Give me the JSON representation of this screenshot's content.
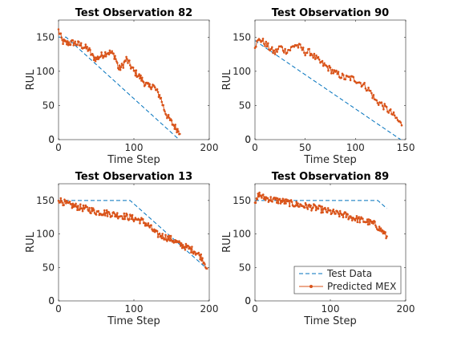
{
  "colors": {
    "test": "#0072BD",
    "pred": "#D95319",
    "axis": "#262626"
  },
  "chart_data": [
    {
      "type": "line",
      "title": "Test Observation 82",
      "xlabel": "Time Step",
      "ylabel": "RUL",
      "xlim": [
        0,
        200
      ],
      "ylim": [
        0,
        175
      ],
      "xticks": [
        0,
        100,
        200
      ],
      "yticks": [
        0,
        50,
        100,
        150
      ],
      "length": 161,
      "test_start": 160,
      "plateau": 150,
      "pred": [
        [
          0,
          160
        ],
        [
          5,
          144
        ],
        [
          10,
          141
        ],
        [
          20,
          142
        ],
        [
          30,
          138
        ],
        [
          40,
          132
        ],
        [
          45,
          122
        ],
        [
          50,
          118
        ],
        [
          55,
          122
        ],
        [
          60,
          125
        ],
        [
          65,
          128
        ],
        [
          70,
          127
        ],
        [
          75,
          122
        ],
        [
          80,
          103
        ],
        [
          85,
          108
        ],
        [
          90,
          118
        ],
        [
          95,
          109
        ],
        [
          100,
          100
        ],
        [
          105,
          95
        ],
        [
          110,
          89
        ],
        [
          115,
          82
        ],
        [
          120,
          77
        ],
        [
          125,
          80
        ],
        [
          130,
          71
        ],
        [
          135,
          63
        ],
        [
          140,
          45
        ],
        [
          145,
          33
        ],
        [
          150,
          25
        ],
        [
          155,
          18
        ],
        [
          160,
          12
        ]
      ],
      "series": [
        {
          "name": "Test Data"
        },
        {
          "name": "Predicted MEX"
        }
      ]
    },
    {
      "type": "line",
      "title": "Test Observation 90",
      "xlabel": "Time Step",
      "ylabel": "RUL",
      "xlim": [
        0,
        150
      ],
      "ylim": [
        0,
        175
      ],
      "xticks": [
        0,
        50,
        100,
        150
      ],
      "yticks": [
        0,
        50,
        100,
        150
      ],
      "length": 146,
      "test_start": 145,
      "plateau": 150,
      "pred": [
        [
          0,
          138
        ],
        [
          5,
          147
        ],
        [
          10,
          141
        ],
        [
          15,
          133
        ],
        [
          20,
          127
        ],
        [
          25,
          136
        ],
        [
          30,
          130
        ],
        [
          35,
          132
        ],
        [
          40,
          139
        ],
        [
          45,
          135
        ],
        [
          50,
          128
        ],
        [
          55,
          128
        ],
        [
          60,
          120
        ],
        [
          65,
          113
        ],
        [
          70,
          108
        ],
        [
          75,
          103
        ],
        [
          80,
          97
        ],
        [
          85,
          94
        ],
        [
          90,
          90
        ],
        [
          95,
          90
        ],
        [
          100,
          88
        ],
        [
          105,
          83
        ],
        [
          110,
          78
        ],
        [
          115,
          70
        ],
        [
          120,
          57
        ],
        [
          125,
          53
        ],
        [
          130,
          46
        ],
        [
          135,
          40
        ],
        [
          140,
          32
        ],
        [
          145,
          23
        ]
      ],
      "series": [
        {
          "name": "Test Data"
        },
        {
          "name": "Predicted MEX"
        }
      ]
    },
    {
      "type": "line",
      "title": "Test Observation 13",
      "xlabel": "Time Step",
      "ylabel": "RUL",
      "xlim": [
        0,
        200
      ],
      "ylim": [
        0,
        175
      ],
      "xticks": [
        0,
        100,
        200
      ],
      "yticks": [
        0,
        50,
        100,
        150
      ],
      "length": 197,
      "test_start": 245,
      "plateau": 150,
      "pred": [
        [
          0,
          152
        ],
        [
          10,
          145
        ],
        [
          20,
          142
        ],
        [
          30,
          139
        ],
        [
          40,
          137
        ],
        [
          50,
          133
        ],
        [
          60,
          132
        ],
        [
          70,
          130
        ],
        [
          80,
          128
        ],
        [
          90,
          126
        ],
        [
          100,
          123
        ],
        [
          110,
          120
        ],
        [
          120,
          112
        ],
        [
          130,
          100
        ],
        [
          140,
          96
        ],
        [
          150,
          92
        ],
        [
          160,
          85
        ],
        [
          170,
          80
        ],
        [
          180,
          75
        ],
        [
          190,
          65
        ],
        [
          197,
          50
        ]
      ],
      "series": [
        {
          "name": "Test Data"
        },
        {
          "name": "Predicted MEX"
        }
      ]
    },
    {
      "type": "line",
      "title": "Test Observation 89",
      "xlabel": "Time Step",
      "ylabel": "RUL",
      "xlim": [
        0,
        200
      ],
      "ylim": [
        0,
        175
      ],
      "xticks": [
        0,
        100,
        200
      ],
      "yticks": [
        0,
        50,
        100,
        150
      ],
      "length": 175,
      "test_start": 313,
      "plateau": 150,
      "pred": [
        [
          0,
          142
        ],
        [
          5,
          160
        ],
        [
          10,
          155
        ],
        [
          20,
          152
        ],
        [
          30,
          150
        ],
        [
          40,
          148
        ],
        [
          50,
          145
        ],
        [
          60,
          143
        ],
        [
          70,
          141
        ],
        [
          80,
          139
        ],
        [
          90,
          136
        ],
        [
          100,
          133
        ],
        [
          110,
          130
        ],
        [
          120,
          128
        ],
        [
          130,
          124
        ],
        [
          140,
          121
        ],
        [
          150,
          118
        ],
        [
          160,
          114
        ],
        [
          165,
          108
        ],
        [
          170,
          103
        ],
        [
          175,
          95
        ]
      ],
      "series": [
        {
          "name": "Test Data"
        },
        {
          "name": "Predicted MEX"
        }
      ],
      "legend": "bottom-right"
    }
  ],
  "legend": {
    "test": "Test Data",
    "pred": "Predicted MEX"
  }
}
